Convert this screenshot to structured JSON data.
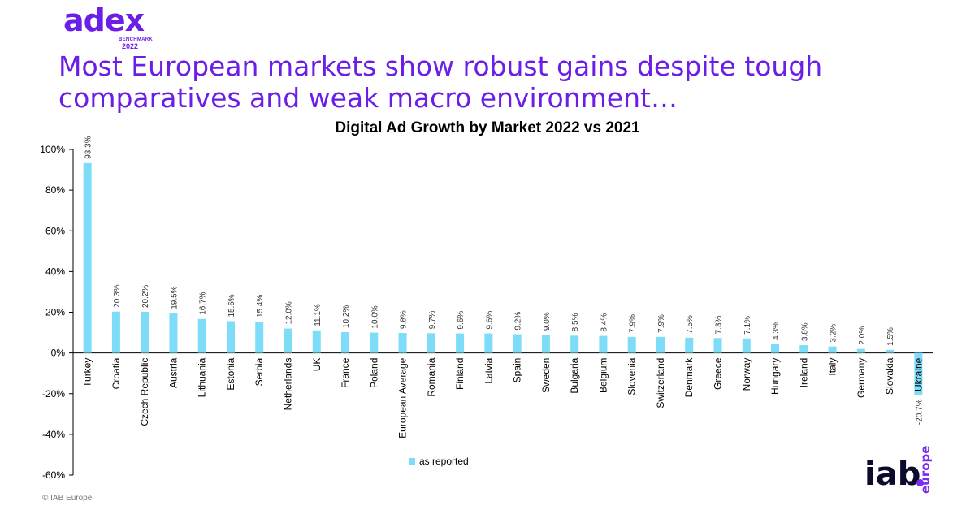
{
  "brand": {
    "logo_word": "adex",
    "logo_sub1": "BENCHMARK",
    "logo_sub2": "2022",
    "primary_color": "#6b1fe6",
    "accent_color": "#6b1fe6"
  },
  "headline": "Most European markets show robust gains despite tough comparatives and weak macro environment…",
  "legend": {
    "label": "as reported",
    "color": "#7ddcf7"
  },
  "footer": {
    "copyright": "© IAB Europe"
  },
  "iab_logo": {
    "word": "iab",
    "region": "europe",
    "accent": "#7a2cf0"
  },
  "chart_data": {
    "type": "bar",
    "title": "Digital Ad Growth by Market 2022 vs 2021",
    "xlabel": "",
    "ylabel": "",
    "ylim": [
      -60,
      100
    ],
    "yticks": [
      100,
      80,
      60,
      40,
      20,
      0,
      -20,
      -40,
      -60
    ],
    "ytick_labels": [
      "100%",
      "80%",
      "60%",
      "40%",
      "20%",
      "0%",
      "-20%",
      "-40%",
      "-60%"
    ],
    "grid": false,
    "legend_position": "bottom",
    "bar_color": "#7ddcf7",
    "categories": [
      "Turkey",
      "Croatia",
      "Czech Republic",
      "Austria",
      "Lithuania",
      "Estonia",
      "Serbia",
      "Netherlands",
      "UK",
      "France",
      "Poland",
      "European Average",
      "Romania",
      "Finland",
      "Latvia",
      "Spain",
      "Sweden",
      "Bulgaria",
      "Belgium",
      "Slovenia",
      "Switzerland",
      "Denmark",
      "Greece",
      "Norway",
      "Hungary",
      "Ireland",
      "Italy",
      "Germany",
      "Slovakia",
      "Ukraine"
    ],
    "series": [
      {
        "name": "as reported",
        "values": [
          93.3,
          20.3,
          20.2,
          19.5,
          16.7,
          15.6,
          15.4,
          12.0,
          11.1,
          10.2,
          10.0,
          9.8,
          9.7,
          9.6,
          9.6,
          9.2,
          9.0,
          8.5,
          8.4,
          7.9,
          7.9,
          7.5,
          7.3,
          7.1,
          4.3,
          3.8,
          3.2,
          2.0,
          1.5,
          -20.7
        ],
        "value_labels": [
          "93.3%",
          "20.3%",
          "20.2%",
          "19.5%",
          "16.7%",
          "15.6%",
          "15.4%",
          "12.0%",
          "11.1%",
          "10.2%",
          "10.0%",
          "9.8%",
          "9.7%",
          "9.6%",
          "9.6%",
          "9.2%",
          "9.0%",
          "8.5%",
          "8.4%",
          "7.9%",
          "7.9%",
          "7.5%",
          "7.3%",
          "7.1%",
          "4.3%",
          "3.8%",
          "3.2%",
          "2.0%",
          "1.5%",
          "-20.7%"
        ]
      }
    ]
  }
}
